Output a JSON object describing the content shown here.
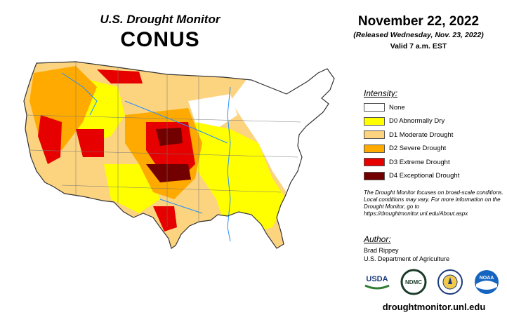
{
  "header": {
    "title": "U.S. Drought Monitor",
    "region": "CONUS",
    "date": "November 22, 2022",
    "released": "(Released Wednesday, Nov. 23, 2022)",
    "valid": "Valid 7 a.m. EST"
  },
  "legend": {
    "heading": "Intensity:",
    "items": [
      {
        "label": "None",
        "color": "#ffffff"
      },
      {
        "label": "D0 Abnormally Dry",
        "color": "#ffff00"
      },
      {
        "label": "D1 Moderate Drought",
        "color": "#fcd37f"
      },
      {
        "label": "D2 Severe Drought",
        "color": "#ffaa00"
      },
      {
        "label": "D3 Extreme Drought",
        "color": "#e60000"
      },
      {
        "label": "D4 Exceptional Drought",
        "color": "#730000"
      }
    ]
  },
  "disclaimer": "The Drought Monitor focuses on broad-scale conditions. Local conditions may vary. For more information on the Drought Monitor, go to https://droughtmonitor.unl.edu/About.aspx",
  "author": {
    "heading": "Author:",
    "name": "Brad Rippey",
    "organization": "U.S. Department of Agriculture"
  },
  "logos": {
    "usda": "USDA",
    "ndmc": "NDMC",
    "doc": "commerce-seal",
    "noaa": "NOAA"
  },
  "website": "droughtmonitor.unl.edu"
}
